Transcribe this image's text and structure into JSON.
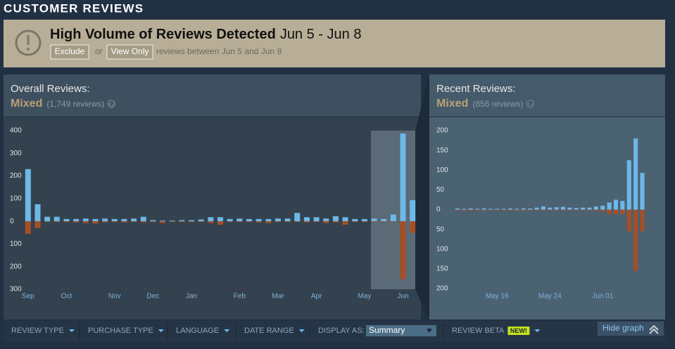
{
  "header": {
    "title": "CUSTOMER REVIEWS"
  },
  "alert": {
    "title": "High Volume of Reviews Detected",
    "dates": "Jun 5 - Jun 8",
    "exclude": "Exclude",
    "or": "or",
    "view_only": "View Only",
    "note": "reviews between Jun 5 and Jun 8"
  },
  "chart_data": [
    {
      "type": "bar",
      "title": "Overall Reviews:",
      "summary": "Mixed",
      "count": "(1,749 reviews)",
      "help": "?",
      "categories": [
        "Sep",
        null,
        null,
        null,
        "Oct",
        null,
        null,
        null,
        null,
        "Nov",
        null,
        null,
        null,
        "Dec",
        null,
        null,
        null,
        "Jan",
        null,
        null,
        null,
        null,
        "Feb",
        null,
        null,
        null,
        "Mar",
        null,
        null,
        null,
        "Apr",
        null,
        null,
        null,
        null,
        "May",
        null,
        null,
        null,
        "Jun",
        null
      ],
      "series": [
        {
          "color": "#6db8e8",
          "values": [
            230,
            75,
            20,
            20,
            10,
            10,
            12,
            10,
            12,
            10,
            10,
            12,
            20,
            5,
            3,
            3,
            5,
            5,
            8,
            18,
            18,
            10,
            12,
            10,
            10,
            10,
            12,
            12,
            37,
            18,
            18,
            12,
            22,
            18,
            10,
            10,
            12,
            10,
            30,
            387,
            93
          ]
        },
        {
          "color": "#a54f26",
          "values": [
            -55,
            -30,
            -3,
            -3,
            -3,
            -5,
            -8,
            -10,
            -5,
            -3,
            -5,
            -3,
            -5,
            -3,
            -8,
            -3,
            -3,
            -3,
            -3,
            -8,
            -15,
            -3,
            -3,
            -3,
            -5,
            -8,
            -3,
            -3,
            -3,
            -5,
            -3,
            -8,
            -5,
            -15,
            -3,
            -3,
            -3,
            -3,
            -3,
            -255,
            -50
          ]
        }
      ],
      "ylim": [
        -300,
        400
      ],
      "yticks": [
        400,
        300,
        200,
        100,
        0,
        {
          "value": -100,
          "label": "100"
        },
        {
          "value": -200,
          "label": "200"
        },
        {
          "value": -300,
          "label": "300"
        }
      ],
      "grid": false
    },
    {
      "type": "bar",
      "title": "Recent Reviews:",
      "summary": "Mixed",
      "count": "(856 reviews)",
      "help": "?",
      "categories": [
        null,
        null,
        null,
        null,
        null,
        null,
        "May 16",
        null,
        null,
        null,
        null,
        null,
        null,
        null,
        "May 24",
        null,
        null,
        null,
        null,
        null,
        null,
        null,
        "Jun 01",
        null,
        null,
        null,
        null,
        null,
        null
      ],
      "series": [
        {
          "color": "#6db8e8",
          "values": [
            3,
            2,
            3,
            2,
            3,
            2,
            2,
            2,
            3,
            2,
            3,
            3,
            5,
            8,
            5,
            6,
            7,
            5,
            4,
            5,
            5,
            8,
            10,
            18,
            25,
            22,
            125,
            180,
            93
          ]
        },
        {
          "color": "#a54f26",
          "values": [
            -2,
            -3,
            -2,
            -2,
            -2,
            -2,
            -2,
            -2,
            -2,
            -3,
            -2,
            -2,
            -2,
            -3,
            -2,
            -2,
            -2,
            -2,
            -2,
            -2,
            -2,
            -3,
            -5,
            -12,
            -12,
            -12,
            -55,
            -155,
            -55
          ]
        }
      ],
      "ylim": [
        -200,
        200
      ],
      "yticks": [
        200,
        150,
        100,
        50,
        0,
        {
          "value": -50,
          "label": "50"
        },
        {
          "value": -100,
          "label": "100"
        },
        {
          "value": -150,
          "label": "150"
        },
        {
          "value": -200,
          "label": "200"
        }
      ],
      "grid": false
    }
  ],
  "filters": [
    "REVIEW TYPE",
    "PURCHASE TYPE",
    "LANGUAGE",
    "DATE RANGE"
  ],
  "display": {
    "label": "DISPLAY AS:",
    "value": "Summary"
  },
  "beta": {
    "label": "REVIEW BETA",
    "badge": "NEW!"
  },
  "hide_graph": "Hide graph"
}
